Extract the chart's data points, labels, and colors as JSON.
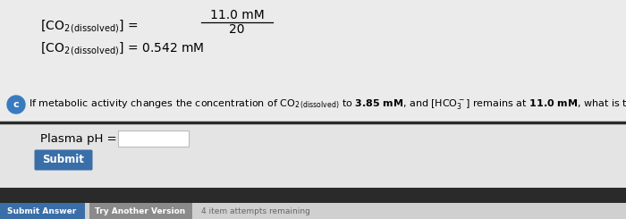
{
  "bg_upper": "#ebebeb",
  "bg_lower": "#e8e8e8",
  "divider_color": "#2a2a2a",
  "bottom_bar_color": "#2a2a2a",
  "bottom_area_color": "#d8d8d8",
  "circle_c_color": "#3a7bbf",
  "submit_btn_color": "#3a6ea8",
  "submit_answer_btn_color": "#3a6ea8",
  "try_another_btn_color": "#8a8a8a",
  "attempts_color": "#666666",
  "submit_label": "Submit",
  "submit_answer_label": "Submit Answer",
  "try_another_label": "Try Another Version",
  "attempts_label": "4 item attempts remaining"
}
